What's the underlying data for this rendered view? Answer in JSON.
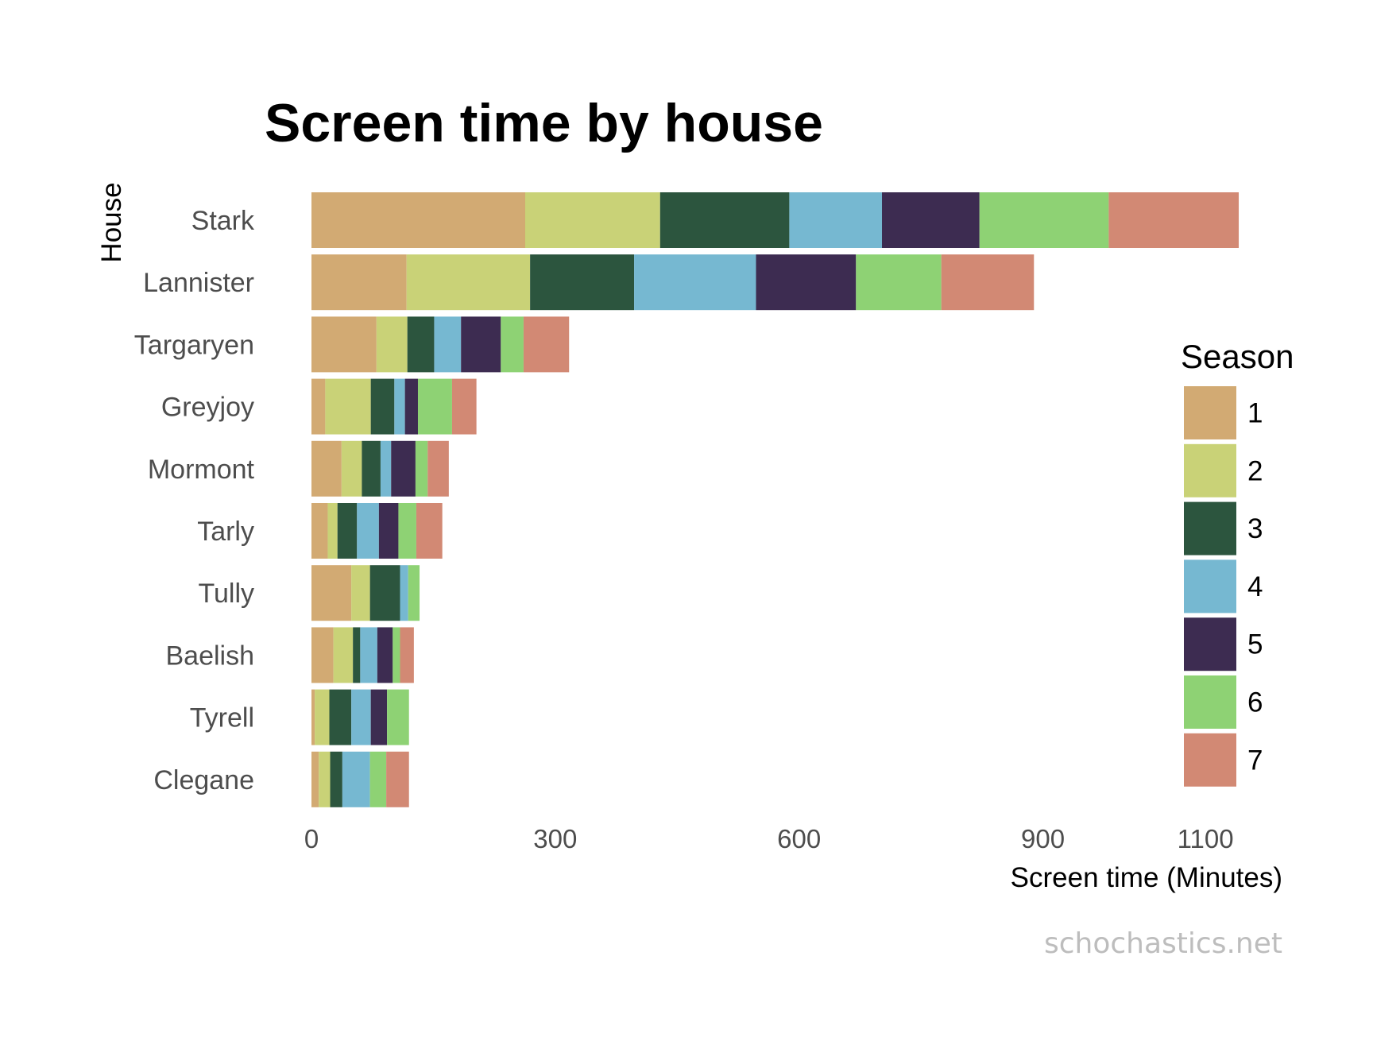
{
  "chart_data": {
    "type": "bar",
    "orientation": "horizontal",
    "stacked": true,
    "title": "Screen time by house",
    "xlabel": "Screen time (Minutes)",
    "ylabel": "House",
    "xlim": [
      0,
      1140
    ],
    "x_ticks": [
      0,
      300,
      600,
      900,
      1100
    ],
    "grid": false,
    "legend": {
      "title": "Season",
      "position": "right"
    },
    "caption": "schochastics.net",
    "categories": [
      "Stark",
      "Lannister",
      "Targaryen",
      "Greyjoy",
      "Mormont",
      "Tarly",
      "Tully",
      "Baelish",
      "Tyrell",
      "Clegane"
    ],
    "series": [
      {
        "name": "1",
        "color": "#d2aa73",
        "values": [
          263,
          117,
          80,
          17,
          37,
          20,
          49,
          27,
          4,
          9
        ]
      },
      {
        "name": "2",
        "color": "#c9d277",
        "values": [
          166,
          152,
          38,
          56,
          25,
          12,
          23,
          24,
          18,
          14
        ]
      },
      {
        "name": "3",
        "color": "#2c553e",
        "values": [
          159,
          128,
          33,
          29,
          23,
          24,
          37,
          9,
          27,
          15
        ]
      },
      {
        "name": "4",
        "color": "#76b8d1",
        "values": [
          114,
          150,
          33,
          13,
          13,
          27,
          10,
          21,
          24,
          34
        ]
      },
      {
        "name": "5",
        "color": "#3d2c51",
        "values": [
          120,
          123,
          49,
          16,
          30,
          24,
          0,
          19,
          20,
          0
        ]
      },
      {
        "name": "6",
        "color": "#8ed274",
        "values": [
          159,
          105,
          28,
          42,
          15,
          22,
          14,
          9,
          27,
          20
        ]
      },
      {
        "name": "7",
        "color": "#d28974",
        "values": [
          160,
          114,
          56,
          30,
          26,
          32,
          0,
          17,
          0,
          28
        ]
      }
    ]
  }
}
